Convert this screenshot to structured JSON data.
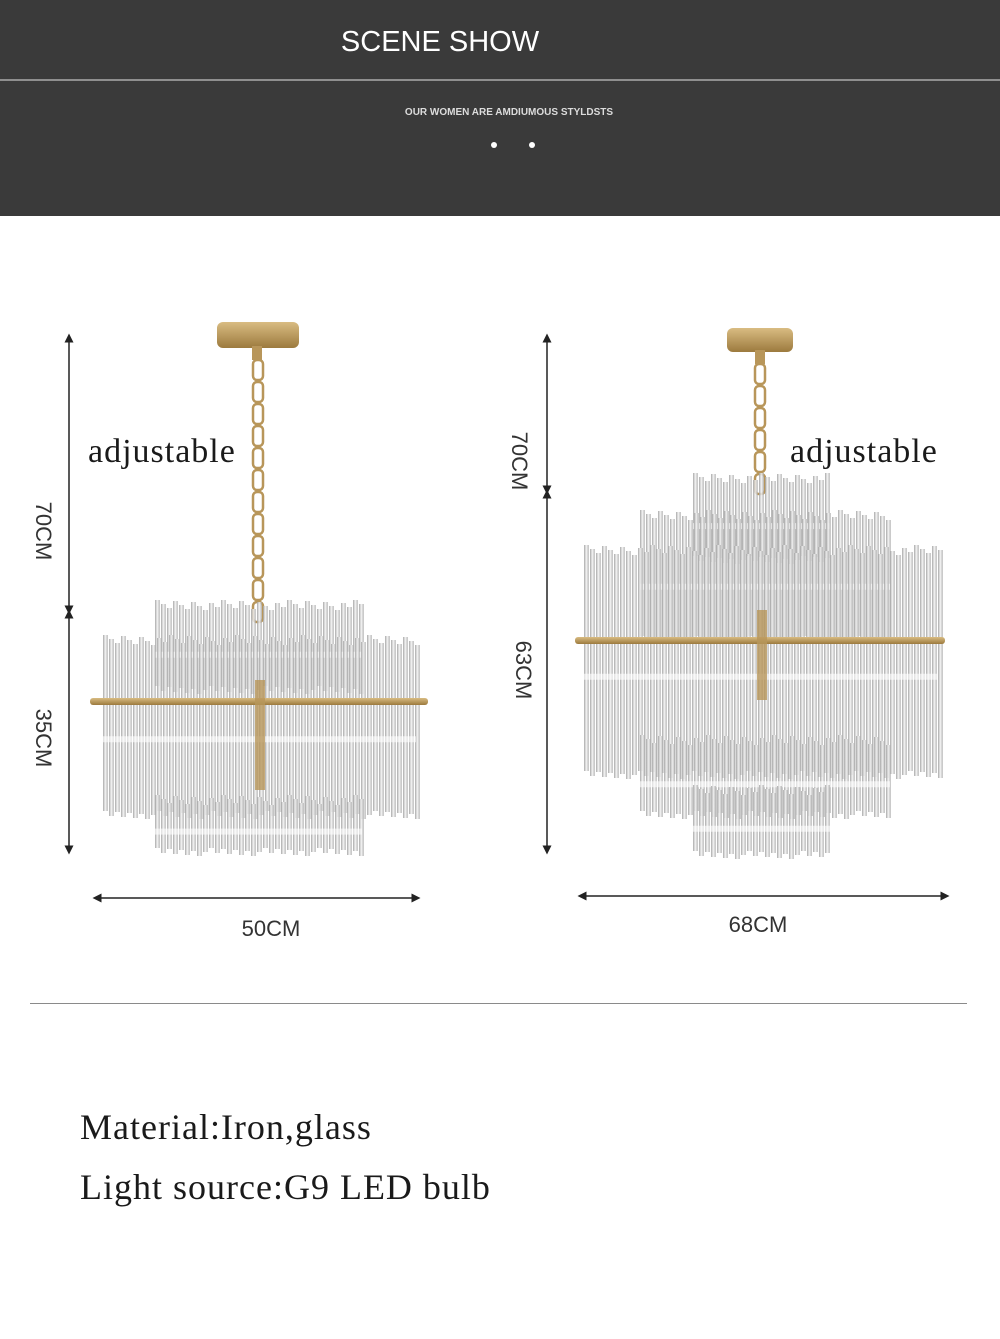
{
  "header": {
    "title": "SCENE SHOW",
    "subtitle": "OUR WOMEN ARE AMDIUMOUS STYLDSTS"
  },
  "products": [
    {
      "adjustable_label": "adjustable",
      "chain_height": "70CM",
      "body_height": "35CM",
      "width": "50CM"
    },
    {
      "adjustable_label": "adjustable",
      "chain_height": "70CM",
      "body_height": "63CM",
      "width": "68CM"
    }
  ],
  "specs": {
    "material": "Material:Iron,glass",
    "light_source": "Light source:G9 LED bulb"
  },
  "colors": {
    "header_bg": "#3a3a3a",
    "brass": "#b8965a",
    "glass": "#c9c9c9"
  }
}
